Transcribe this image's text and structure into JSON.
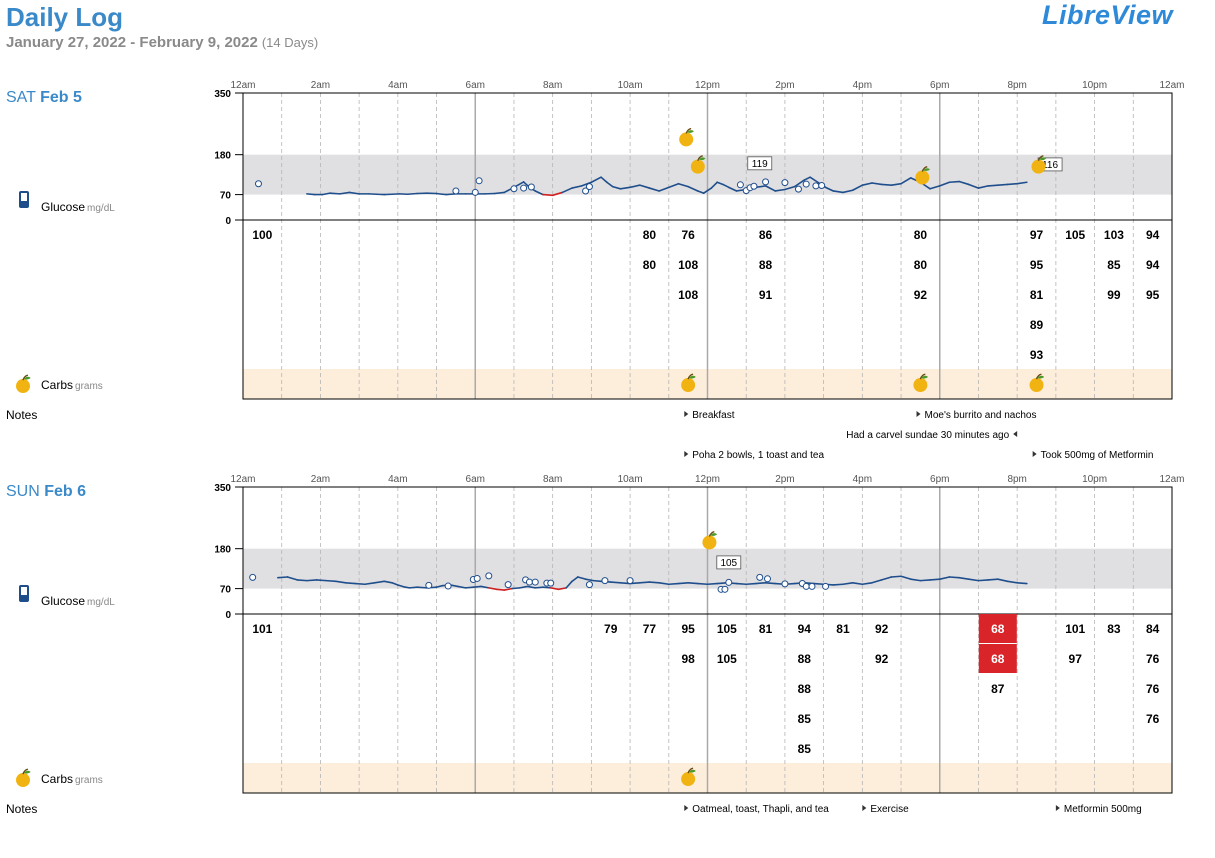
{
  "header": {
    "title": "Daily Log",
    "date_range": "January 27, 2022 - February 9, 2022",
    "days": "(14 Days)",
    "brand": "LibreView"
  },
  "labels": {
    "glucose": "Glucose",
    "glucose_unit": "mg/dL",
    "carbs": "Carbs",
    "carbs_unit": "grams",
    "notes": "Notes"
  },
  "time_axis": [
    "12am",
    "2am",
    "4am",
    "6am",
    "8am",
    "10am",
    "12pm",
    "2pm",
    "4pm",
    "6pm",
    "8pm",
    "10pm",
    "12am"
  ],
  "y_ticks": [
    0,
    70,
    180,
    350
  ],
  "target_range": [
    70,
    180
  ],
  "low_threshold": 70,
  "colors": {
    "line": "#1f4e8c",
    "low": "#d02020",
    "target": "#e0e0e2",
    "carbs_band": "#fdeedb",
    "apple": "#f1b311",
    "low_cell": "#d9242a"
  },
  "days": [
    {
      "weekday": "SAT",
      "date": "Feb 5",
      "cgm": [
        [
          2.8,
          72
        ],
        [
          3.2,
          70
        ],
        [
          3.6,
          70
        ],
        [
          4,
          74
        ],
        [
          4.5,
          72
        ],
        [
          5,
          76
        ],
        [
          5.5,
          72
        ],
        [
          6,
          72
        ],
        [
          6.4,
          71
        ],
        [
          6.8,
          70
        ],
        [
          7.2,
          71
        ],
        [
          7.6,
          72
        ],
        [
          8,
          71
        ],
        [
          8.5,
          73
        ],
        [
          9,
          74
        ],
        [
          9.5,
          73
        ],
        [
          9.8,
          71
        ],
        [
          10,
          70
        ],
        [
          10.5,
          72
        ],
        [
          11,
          72
        ],
        [
          11.5,
          72
        ],
        [
          12,
          72
        ],
        [
          12.5,
          73
        ],
        [
          13,
          76
        ],
        [
          13.5,
          90
        ],
        [
          14,
          105
        ],
        [
          14.3,
          90
        ],
        [
          14.6,
          80
        ],
        [
          15,
          70
        ],
        [
          15.5,
          68
        ],
        [
          16,
          76
        ],
        [
          16.5,
          88
        ],
        [
          17,
          94
        ],
        [
          17.5,
          104
        ],
        [
          18,
          118
        ],
        [
          18.3,
          104
        ],
        [
          18.6,
          92
        ],
        [
          19,
          86
        ],
        [
          19.5,
          90
        ],
        [
          20,
          96
        ],
        [
          20.5,
          88
        ],
        [
          21,
          80
        ],
        [
          21.5,
          90
        ],
        [
          22,
          100
        ],
        [
          22.5,
          92
        ],
        [
          23,
          80
        ],
        [
          23.3,
          74
        ],
        [
          23.7,
          88
        ],
        [
          24,
          104
        ],
        [
          24.3,
          98
        ],
        [
          24.6,
          90
        ],
        [
          25,
          80
        ],
        [
          25.5,
          84
        ],
        [
          26,
          90
        ],
        [
          26.5,
          94
        ],
        [
          27,
          80
        ],
        [
          27.5,
          84
        ],
        [
          28,
          92
        ],
        [
          28.5,
          110
        ],
        [
          28.8,
          118
        ],
        [
          29.2,
          104
        ],
        [
          29.6,
          90
        ],
        [
          30,
          80
        ],
        [
          30.5,
          76
        ],
        [
          31,
          82
        ],
        [
          31.5,
          96
        ],
        [
          32,
          102
        ],
        [
          32.5,
          98
        ],
        [
          33,
          96
        ],
        [
          33.5,
          100
        ],
        [
          34,
          116
        ],
        [
          34.5,
          104
        ],
        [
          35,
          86
        ],
        [
          35.5,
          94
        ],
        [
          36,
          104
        ],
        [
          36.5,
          106
        ],
        [
          37,
          98
        ],
        [
          37.5,
          88
        ],
        [
          38,
          94
        ],
        [
          38.5,
          96
        ],
        [
          39,
          98
        ],
        [
          39.5,
          100
        ],
        [
          40,
          104
        ]
      ],
      "points": [
        [
          0.3,
          100
        ],
        [
          10.5,
          80
        ],
        [
          11.5,
          76
        ],
        [
          11.7,
          108
        ],
        [
          13.5,
          86
        ],
        [
          14,
          88
        ],
        [
          14.4,
          91
        ],
        [
          17.2,
          80
        ],
        [
          17.4,
          92
        ],
        [
          25.2,
          97
        ],
        [
          25.5,
          81
        ],
        [
          25.7,
          89
        ],
        [
          25.9,
          93
        ],
        [
          26.5,
          105
        ],
        [
          27.5,
          103
        ],
        [
          28.2,
          85
        ],
        [
          28.6,
          99
        ],
        [
          29.1,
          94
        ],
        [
          29.4,
          95
        ]
      ],
      "callouts": [
        {
          "h": 13.1,
          "v": 119,
          "label": "119"
        },
        {
          "h": 20.6,
          "v": 116,
          "label": "116"
        }
      ],
      "chart_apples": [
        [
          11.2,
          225
        ],
        [
          11.5,
          150
        ],
        [
          17.3,
          120
        ],
        [
          20.3,
          150
        ]
      ],
      "bg_cols": [
        {
          "h": 0.5,
          "vals": [
            {
              "t": "100"
            }
          ]
        },
        {
          "h": 10.5,
          "vals": [
            {
              "t": "80"
            },
            {
              "t": "80"
            }
          ]
        },
        {
          "h": 11.5,
          "vals": [
            {
              "t": "76"
            },
            {
              "t": "108"
            },
            {
              "t": "108"
            }
          ]
        },
        {
          "h": 13.5,
          "vals": [
            {
              "t": "86"
            },
            {
              "t": "88"
            },
            {
              "t": "91"
            }
          ]
        },
        {
          "h": 17.5,
          "vals": [
            {
              "t": "80"
            },
            {
              "t": "80"
            },
            {
              "t": "92"
            }
          ]
        },
        {
          "h": 20.5,
          "vals": [
            {
              "t": "97"
            },
            {
              "t": "95"
            },
            {
              "t": "81"
            },
            {
              "t": "89"
            },
            {
              "t": "93"
            }
          ]
        },
        {
          "h": 21.5,
          "vals": [
            {
              "t": "105"
            }
          ]
        },
        {
          "h": 22.5,
          "vals": [
            {
              "t": "103"
            },
            {
              "t": "85"
            },
            {
              "t": "99"
            }
          ]
        },
        {
          "h": 23.5,
          "vals": [
            {
              "t": "94"
            },
            {
              "t": "94"
            },
            {
              "t": "95"
            }
          ]
        }
      ],
      "carb_apples": [
        11.5,
        17.5,
        20.5
      ],
      "notes": [
        {
          "h": 11.4,
          "row": 0,
          "side": "right",
          "text": "Breakfast"
        },
        {
          "h": 17.4,
          "row": 0,
          "side": "right",
          "text": "Moe's burrito and nachos"
        },
        {
          "h": 20.0,
          "row": 1,
          "side": "left",
          "text": "Had a carvel sundae 30 minutes ago"
        },
        {
          "h": 11.4,
          "row": 2,
          "side": "right",
          "text": "Poha 2 bowls, 1 toast and tea"
        },
        {
          "h": 20.4,
          "row": 2,
          "side": "right",
          "text": "Took 500mg of Metformin"
        }
      ]
    },
    {
      "weekday": "SUN",
      "date": "Feb 6",
      "cgm": [
        [
          1.3,
          100
        ],
        [
          1.8,
          102
        ],
        [
          2.3,
          94
        ],
        [
          2.8,
          92
        ],
        [
          3.3,
          94
        ],
        [
          3.8,
          92
        ],
        [
          4.3,
          90
        ],
        [
          4.8,
          86
        ],
        [
          5.3,
          84
        ],
        [
          5.8,
          82
        ],
        [
          6.3,
          86
        ],
        [
          6.8,
          90
        ],
        [
          7.2,
          86
        ],
        [
          7.5,
          80
        ],
        [
          7.8,
          75
        ],
        [
          8.1,
          72
        ],
        [
          8.5,
          74
        ],
        [
          9,
          72
        ],
        [
          9.5,
          74
        ],
        [
          9.8,
          78
        ],
        [
          10.2,
          80
        ],
        [
          10.6,
          76
        ],
        [
          11,
          72
        ],
        [
          11.4,
          74
        ],
        [
          11.8,
          76
        ],
        [
          12.2,
          72
        ],
        [
          12.6,
          68
        ],
        [
          13,
          66
        ],
        [
          13.4,
          70
        ],
        [
          13.8,
          72
        ],
        [
          14.2,
          76
        ],
        [
          14.6,
          72
        ],
        [
          15,
          74
        ],
        [
          15.4,
          72
        ],
        [
          15.8,
          68
        ],
        [
          16.2,
          72
        ],
        [
          16.5,
          90
        ],
        [
          16.8,
          102
        ],
        [
          17.2,
          96
        ],
        [
          17.6,
          92
        ],
        [
          18,
          90
        ],
        [
          18.5,
          88
        ],
        [
          19,
          86
        ],
        [
          19.5,
          84
        ],
        [
          20,
          86
        ],
        [
          20.5,
          88
        ],
        [
          21,
          86
        ],
        [
          21.5,
          82
        ],
        [
          22,
          84
        ],
        [
          22.5,
          86
        ],
        [
          23,
          84
        ],
        [
          23.5,
          82
        ],
        [
          24,
          84
        ],
        [
          24.5,
          86
        ],
        [
          25,
          84
        ],
        [
          25.5,
          82
        ],
        [
          26,
          84
        ],
        [
          26.5,
          86
        ],
        [
          27,
          84
        ],
        [
          27.5,
          82
        ],
        [
          28,
          84
        ],
        [
          28.5,
          86
        ],
        [
          29,
          84
        ],
        [
          29.5,
          82
        ],
        [
          30,
          80
        ],
        [
          30.5,
          82
        ],
        [
          31,
          86
        ],
        [
          31.5,
          82
        ],
        [
          32,
          86
        ],
        [
          32.5,
          94
        ],
        [
          33,
          102
        ],
        [
          33.5,
          104
        ],
        [
          34,
          96
        ],
        [
          34.5,
          92
        ],
        [
          35,
          94
        ],
        [
          35.5,
          96
        ],
        [
          36,
          102
        ],
        [
          36.5,
          100
        ],
        [
          37,
          96
        ],
        [
          37.5,
          92
        ],
        [
          38,
          94
        ],
        [
          38.5,
          96
        ],
        [
          39,
          90
        ],
        [
          39.5,
          86
        ],
        [
          40,
          84
        ]
      ],
      "points": [
        [
          0,
          101
        ],
        [
          9.1,
          79
        ],
        [
          10.1,
          77
        ],
        [
          11.4,
          95
        ],
        [
          11.6,
          98
        ],
        [
          12.2,
          105
        ],
        [
          13.2,
          81
        ],
        [
          14.1,
          94
        ],
        [
          14.3,
          88
        ],
        [
          14.6,
          88
        ],
        [
          15.2,
          85
        ],
        [
          15.4,
          85
        ],
        [
          17.4,
          81
        ],
        [
          18.2,
          92
        ],
        [
          19.5,
          92
        ],
        [
          24.2,
          68
        ],
        [
          24.4,
          68
        ],
        [
          24.6,
          87
        ],
        [
          26.2,
          101
        ],
        [
          26.6,
          97
        ],
        [
          27.5,
          83
        ],
        [
          28.4,
          84
        ],
        [
          28.6,
          76
        ],
        [
          28.9,
          76
        ],
        [
          29.6,
          76
        ]
      ],
      "callouts": [
        {
          "h": 12.3,
          "v": 105,
          "label": "105"
        }
      ],
      "chart_apples": [
        [
          11.8,
          200
        ]
      ],
      "bg_cols": [
        {
          "h": 0.5,
          "vals": [
            {
              "t": "101"
            }
          ]
        },
        {
          "h": 9.5,
          "vals": [
            {
              "t": "79"
            }
          ]
        },
        {
          "h": 10.5,
          "vals": [
            {
              "t": "77"
            }
          ]
        },
        {
          "h": 11.5,
          "vals": [
            {
              "t": "95"
            },
            {
              "t": "98"
            }
          ]
        },
        {
          "h": 12.5,
          "vals": [
            {
              "t": "105"
            },
            {
              "t": "105"
            }
          ]
        },
        {
          "h": 13.5,
          "vals": [
            {
              "t": "81"
            }
          ]
        },
        {
          "h": 14.5,
          "vals": [
            {
              "t": "94"
            },
            {
              "t": "88"
            },
            {
              "t": "88"
            },
            {
              "t": "85"
            },
            {
              "t": "85"
            }
          ]
        },
        {
          "h": 15.5,
          "vals": [
            {
              "t": "81"
            }
          ]
        },
        {
          "h": 16.5,
          "vals": [
            {
              "t": "92"
            },
            {
              "t": "92"
            }
          ]
        },
        {
          "h": 19.5,
          "vals": [
            {
              "t": "68",
              "low": true
            },
            {
              "t": "68",
              "low": true
            },
            {
              "t": "87"
            }
          ]
        },
        {
          "h": 21.5,
          "vals": [
            {
              "t": "101"
            },
            {
              "t": "97"
            }
          ]
        },
        {
          "h": 22.5,
          "vals": [
            {
              "t": "83"
            }
          ]
        },
        {
          "h": 23.5,
          "vals": [
            {
              "t": "84"
            },
            {
              "t": "76"
            },
            {
              "t": "76"
            },
            {
              "t": "76"
            }
          ]
        }
      ],
      "carb_apples": [
        11.5
      ],
      "notes": [
        {
          "h": 11.4,
          "row": 0,
          "side": "right",
          "text": "Oatmeal, toast, Thapli, and tea"
        },
        {
          "h": 16.0,
          "row": 0,
          "side": "right",
          "text": "Exercise"
        },
        {
          "h": 21.0,
          "row": 0,
          "side": "right",
          "text": "Metformin 500mg"
        }
      ]
    }
  ]
}
